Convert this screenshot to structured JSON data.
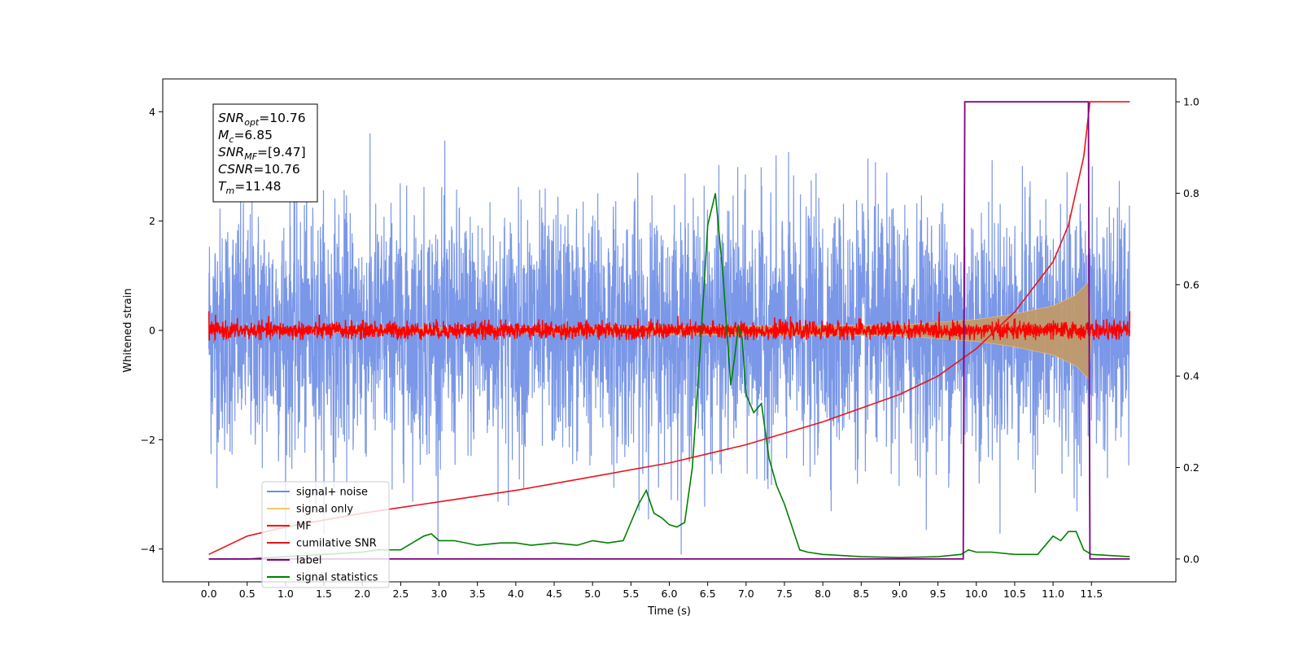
{
  "chart_data": {
    "type": "line",
    "xlabel": "Time (s)",
    "ylabel": "Whitened strain",
    "xlim": [
      -0.6,
      12.6
    ],
    "ylim": [
      -4.6,
      4.6
    ],
    "y2lim": [
      -0.05,
      1.05
    ],
    "x_ticks": [
      "0.0",
      "0.5",
      "1.0",
      "1.5",
      "2.0",
      "2.5",
      "3.0",
      "3.5",
      "4.0",
      "4.5",
      "5.0",
      "5.5",
      "6.0",
      "6.5",
      "7.0",
      "7.5",
      "8.0",
      "8.5",
      "9.0",
      "9.5",
      "10.0",
      "10.5",
      "11.0",
      "11.5"
    ],
    "y_ticks": [
      "4",
      "2",
      "0",
      "−2",
      "−4"
    ],
    "y2_ticks": [
      "1.0",
      "0.8",
      "0.6",
      "0.4",
      "0.2",
      "0.0"
    ],
    "legend_position": "lower-left",
    "annotation_lines": [
      {
        "sym": "SNR",
        "sub": "opt",
        "rest": "=10.76"
      },
      {
        "sym": "M",
        "sub": "c",
        "rest": "=6.85"
      },
      {
        "sym": "SNR",
        "sub": "MF",
        "rest": "=[9.47]"
      },
      {
        "sym": "CSNR",
        "sub": "",
        "rest": "=10.76"
      },
      {
        "sym": "T",
        "sub": "m",
        "rest": "=11.48"
      }
    ],
    "series": [
      {
        "name": "signal+ noise",
        "color": "#6c8ce6",
        "axis": "left",
        "style": "noise",
        "x_range": [
          0,
          12.0
        ],
        "approx_std": 1.1,
        "approx_peak": 4.1
      },
      {
        "name": "signal only",
        "color": "#f5c76f",
        "fill_color": "#c19a6b",
        "axis": "left",
        "style": "chirp",
        "envelope": {
          "x": [
            0,
            9.0,
            10.0,
            10.5,
            11.0,
            11.3,
            11.47,
            11.5
          ],
          "y": [
            0.02,
            0.1,
            0.2,
            0.3,
            0.45,
            0.65,
            0.9,
            0.0
          ]
        }
      },
      {
        "name": "MF",
        "color": "#ff0000",
        "axis": "left",
        "style": "noise",
        "x_range": [
          0,
          12.0
        ],
        "approx_std": 0.08,
        "approx_peak": 0.35
      },
      {
        "name": "cumilative SNR",
        "color": "#e8151b",
        "axis": "right",
        "x": [
          0,
          0.5,
          1.0,
          2.0,
          3.0,
          4.0,
          5.0,
          6.0,
          7.0,
          8.0,
          9.0,
          9.5,
          10.0,
          10.5,
          11.0,
          11.2,
          11.4,
          11.48,
          11.6,
          12.0
        ],
        "y": [
          0.01,
          0.05,
          0.07,
          0.1,
          0.125,
          0.15,
          0.18,
          0.21,
          0.25,
          0.3,
          0.36,
          0.4,
          0.46,
          0.54,
          0.65,
          0.73,
          0.88,
          1.0,
          1.0,
          1.0
        ]
      },
      {
        "name": "label",
        "color": "#800080",
        "axis": "right",
        "x": [
          0,
          9.83,
          9.85,
          11.46,
          11.48,
          12.0
        ],
        "y": [
          0,
          0,
          1,
          1,
          0,
          0
        ]
      },
      {
        "name": "signal statistics",
        "color": "#008000",
        "axis": "right",
        "x": [
          0,
          0.5,
          1.0,
          1.5,
          2.0,
          2.2,
          2.5,
          2.7,
          2.8,
          2.9,
          3.0,
          3.2,
          3.5,
          3.8,
          4.0,
          4.2,
          4.5,
          4.8,
          5.0,
          5.2,
          5.4,
          5.5,
          5.6,
          5.7,
          5.8,
          5.9,
          6.0,
          6.1,
          6.2,
          6.3,
          6.4,
          6.5,
          6.6,
          6.7,
          6.8,
          6.85,
          6.9,
          6.95,
          7.0,
          7.1,
          7.2,
          7.3,
          7.4,
          7.5,
          7.7,
          7.8,
          8.0,
          8.5,
          9.0,
          9.5,
          9.8,
          9.9,
          10.0,
          10.2,
          10.5,
          10.8,
          11.0,
          11.1,
          11.2,
          11.3,
          11.4,
          11.5,
          12.0
        ],
        "y": [
          0.0,
          0.0,
          0.005,
          0.01,
          0.015,
          0.02,
          0.02,
          0.04,
          0.05,
          0.055,
          0.04,
          0.04,
          0.03,
          0.035,
          0.035,
          0.03,
          0.035,
          0.03,
          0.04,
          0.035,
          0.04,
          0.08,
          0.12,
          0.15,
          0.1,
          0.09,
          0.075,
          0.07,
          0.08,
          0.2,
          0.45,
          0.73,
          0.8,
          0.62,
          0.38,
          0.44,
          0.51,
          0.48,
          0.36,
          0.32,
          0.34,
          0.22,
          0.16,
          0.12,
          0.02,
          0.015,
          0.01,
          0.005,
          0.003,
          0.005,
          0.01,
          0.02,
          0.015,
          0.015,
          0.01,
          0.01,
          0.05,
          0.04,
          0.06,
          0.06,
          0.02,
          0.01,
          0.005
        ]
      }
    ]
  }
}
